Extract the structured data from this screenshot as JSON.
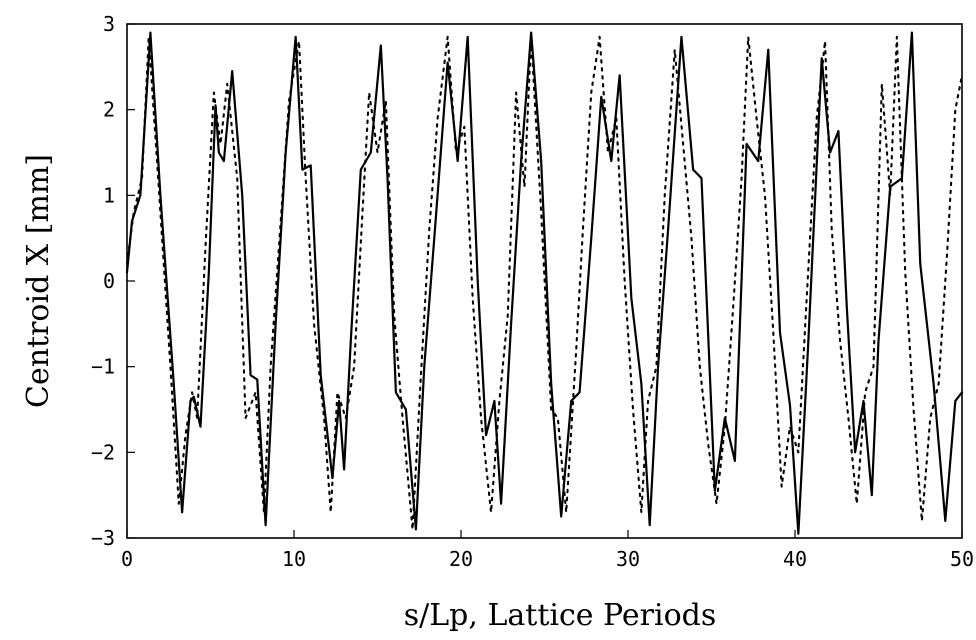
{
  "chart_data": {
    "type": "line",
    "title": "",
    "xlabel": "s/Lp, Lattice Periods",
    "ylabel": "Centroid X [mm]",
    "xlim": [
      0,
      50
    ],
    "ylim": [
      -3,
      3
    ],
    "xticks": [
      0,
      10,
      20,
      30,
      40,
      50
    ],
    "yticks": [
      -3,
      -2,
      -1,
      0,
      1,
      2,
      3
    ],
    "grid": false,
    "legend": "none",
    "series": [
      {
        "style": "solid",
        "color": "#000000",
        "x": [
          0,
          0.3,
          0.8,
          1.4,
          2.0,
          2.8,
          3.3,
          3.8,
          4.0,
          4.4,
          4.9,
          5.3,
          5.5,
          5.8,
          6.3,
          6.9,
          7.4,
          7.8,
          8.3,
          8.9,
          9.5,
          10.1,
          10.5,
          11.0,
          11.6,
          12.3,
          12.7,
          13.0,
          13.4,
          14.0,
          14.6,
          15.2,
          15.6,
          16.1,
          16.7,
          17.3,
          17.8,
          18.4,
          19.2,
          19.8,
          20.4,
          21.0,
          21.5,
          22.0,
          22.4,
          23.0,
          23.6,
          24.2,
          24.8,
          25.4,
          26.0,
          26.6,
          27.1,
          27.8,
          28.4,
          29.0,
          29.5,
          30.2,
          30.8,
          31.3,
          31.8,
          32.4,
          33.2,
          33.9,
          34.4,
          35.2,
          35.8,
          36.4,
          37.1,
          37.8,
          38.4,
          39.1,
          39.7,
          40.2,
          40.8,
          41.6,
          42.1,
          42.6,
          43.1,
          43.6,
          44.1,
          44.6,
          45.0,
          45.7,
          46.4,
          47.0,
          47.5,
          48.3,
          49.0,
          49.6,
          50.0
        ],
        "y": [
          0.1,
          0.7,
          1.0,
          2.9,
          1.0,
          -1.2,
          -2.7,
          -1.4,
          -1.35,
          -1.7,
          0.1,
          2.05,
          1.5,
          1.4,
          2.45,
          1.0,
          -1.1,
          -1.15,
          -2.85,
          -0.5,
          1.5,
          2.85,
          1.3,
          1.35,
          -1.1,
          -2.3,
          -1.4,
          -2.2,
          -0.7,
          1.3,
          1.5,
          2.75,
          1.2,
          -1.3,
          -1.5,
          -2.9,
          -1.0,
          0.5,
          2.55,
          1.4,
          2.85,
          0.0,
          -1.8,
          -1.4,
          -2.6,
          -0.5,
          1.4,
          2.9,
          1.4,
          -1.2,
          -2.75,
          -1.4,
          -1.3,
          0.5,
          2.15,
          1.4,
          2.4,
          -0.2,
          -1.2,
          -2.85,
          -1.0,
          0.6,
          2.85,
          1.3,
          1.2,
          -2.45,
          -1.6,
          -2.1,
          1.6,
          1.4,
          2.7,
          -0.6,
          -1.45,
          -2.95,
          -0.7,
          2.6,
          1.5,
          1.75,
          -0.3,
          -2.0,
          -1.4,
          -2.5,
          -0.7,
          1.1,
          1.2,
          2.9,
          0.2,
          -1.2,
          -2.8,
          -1.4,
          -1.3
        ]
      },
      {
        "style": "dotted",
        "color": "#000000",
        "x": [
          0,
          0.4,
          0.9,
          1.3,
          1.9,
          2.6,
          3.1,
          3.5,
          3.9,
          4.2,
          4.7,
          5.2,
          5.6,
          6.0,
          6.6,
          7.1,
          7.7,
          8.2,
          8.6,
          9.1,
          9.7,
          10.3,
          10.7,
          11.2,
          11.8,
          12.2,
          12.6,
          13.1,
          13.6,
          14.1,
          14.5,
          15.0,
          15.5,
          16.0,
          16.5,
          17.1,
          17.6,
          18.1,
          18.6,
          19.2,
          19.7,
          20.2,
          20.7,
          21.2,
          21.8,
          22.3,
          22.8,
          23.3,
          23.8,
          24.2,
          24.8,
          25.4,
          25.8,
          26.3,
          26.9,
          27.3,
          27.8,
          28.3,
          28.8,
          29.3,
          29.8,
          30.3,
          30.8,
          31.2,
          31.7,
          32.2,
          32.8,
          33.3,
          33.8,
          34.3,
          34.8,
          35.3,
          35.8,
          36.3,
          36.8,
          37.2,
          37.7,
          38.2,
          38.7,
          39.2,
          39.7,
          40.2,
          40.7,
          41.3,
          41.8,
          42.2,
          42.7,
          43.2,
          43.7,
          44.2,
          44.7,
          45.2,
          45.7,
          46.1,
          46.6,
          47.1,
          47.6,
          48.1,
          48.6,
          49.1,
          49.6,
          50.0
        ],
        "y": [
          0.2,
          0.8,
          1.2,
          2.85,
          1.1,
          -1.0,
          -2.6,
          -1.8,
          -1.3,
          -1.6,
          0.4,
          2.2,
          1.6,
          2.3,
          1.2,
          -1.6,
          -1.3,
          -2.7,
          -1.0,
          0.4,
          2.1,
          2.8,
          1.2,
          -0.5,
          -1.6,
          -2.7,
          -1.3,
          -1.6,
          -1.0,
          0.8,
          2.2,
          1.5,
          2.1,
          -0.4,
          -1.6,
          -2.9,
          -1.1,
          0.6,
          1.9,
          2.85,
          1.5,
          1.8,
          -0.2,
          -1.6,
          -2.7,
          -1.4,
          -0.4,
          2.2,
          1.1,
          2.85,
          0.8,
          -1.5,
          -1.6,
          -2.7,
          -0.8,
          0.6,
          2.2,
          2.85,
          1.5,
          1.9,
          0.0,
          -1.5,
          -2.7,
          -1.4,
          -1.0,
          1.0,
          2.7,
          1.6,
          0.5,
          -1.0,
          -1.9,
          -2.6,
          -1.7,
          -0.3,
          1.2,
          2.85,
          1.9,
          1.0,
          -0.6,
          -2.4,
          -1.7,
          -2.0,
          -0.2,
          1.9,
          2.8,
          0.6,
          -0.7,
          -1.6,
          -2.6,
          -1.3,
          -1.0,
          2.3,
          1.0,
          2.85,
          0.1,
          -1.5,
          -2.8,
          -1.6,
          -1.2,
          0.3,
          2.0,
          2.4
        ]
      }
    ]
  }
}
